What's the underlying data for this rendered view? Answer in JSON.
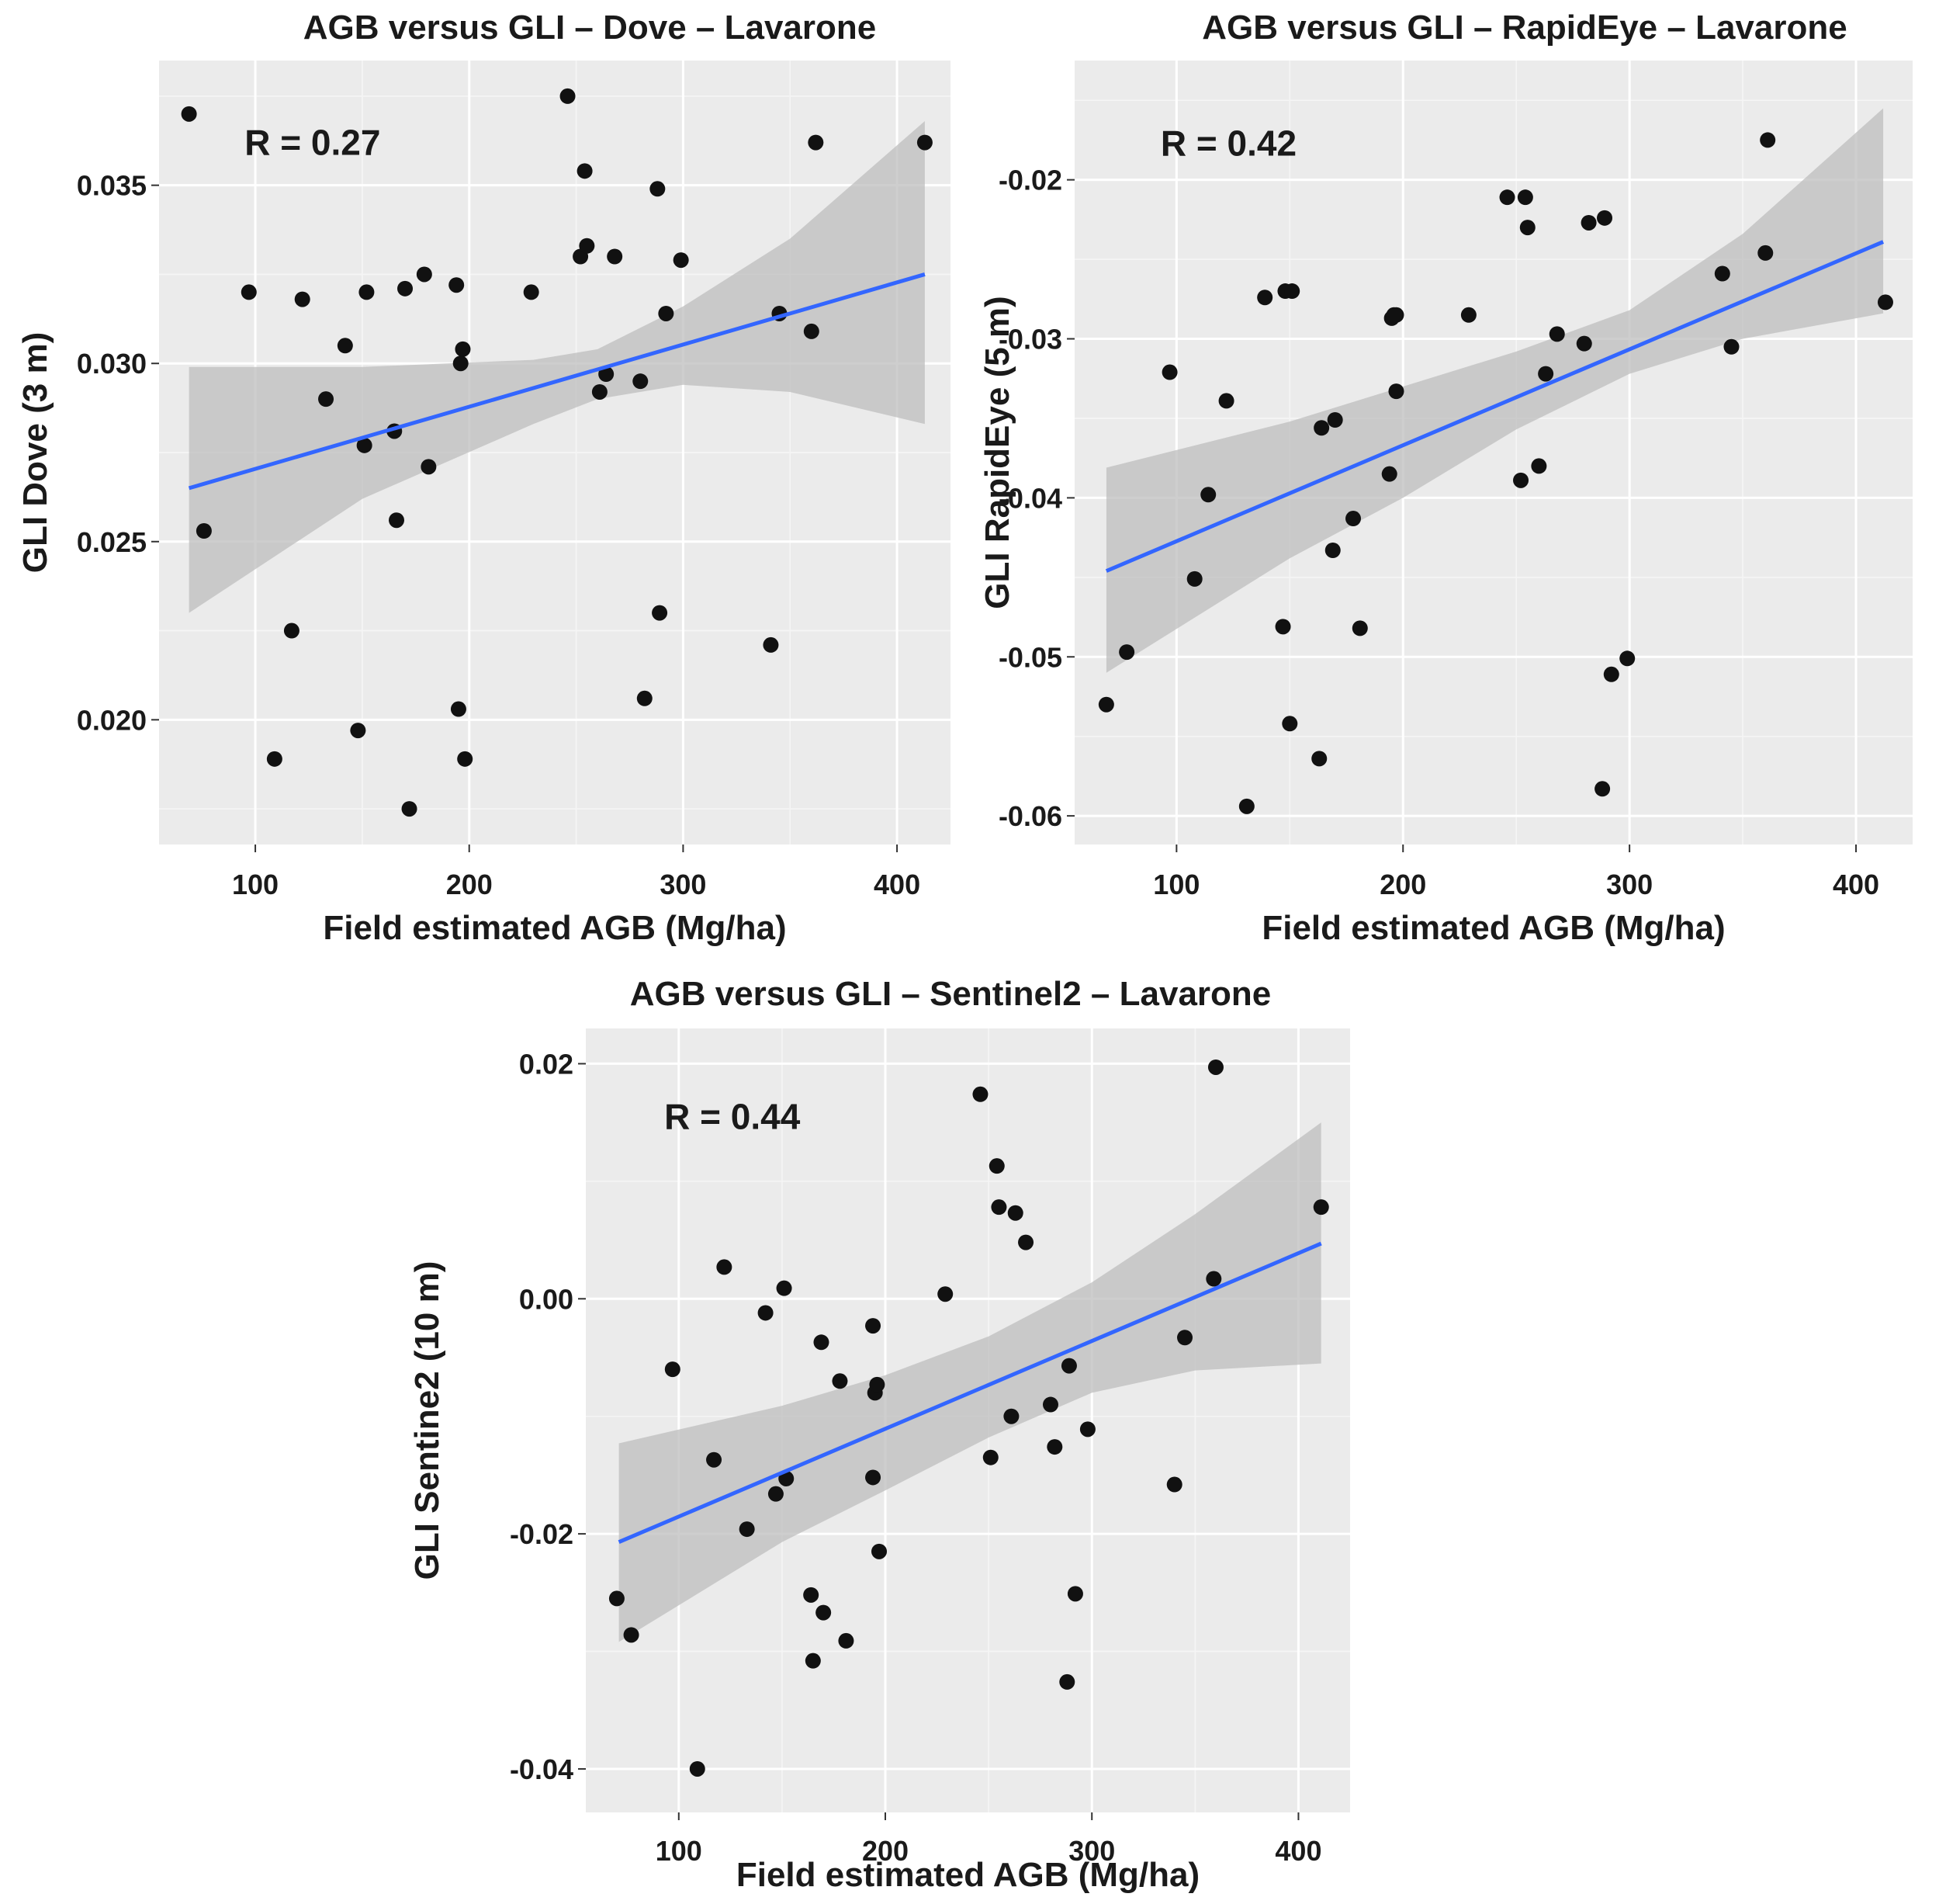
{
  "chart_data": [
    {
      "id": "dove",
      "type": "scatter",
      "title": "AGB versus GLI – Dove – Lavarone",
      "xlabel": "Field estimated AGB (Mg/ha)",
      "ylabel": "GLI Dove (3 m)",
      "annotation": "R = 0.27",
      "xlim": [
        55,
        425
      ],
      "ylim": [
        0.0165,
        0.0385
      ],
      "xticks": [
        100,
        200,
        300,
        400
      ],
      "xtick_labels": [
        "100",
        "200",
        "300",
        "400"
      ],
      "yticks": [
        0.02,
        0.025,
        0.03,
        0.035
      ],
      "ytick_labels": [
        "0.020",
        "0.025",
        "0.030",
        "0.035"
      ],
      "annotation_at": [
        95,
        0.0362
      ],
      "fit": {
        "x": [
          69,
          413
        ],
        "y": [
          0.0265,
          0.0325
        ]
      },
      "ribbon": {
        "x": [
          69,
          150,
          230,
          260,
          300,
          350,
          413
        ],
        "lower": [
          0.023,
          0.0262,
          0.0283,
          0.029,
          0.0294,
          0.0292,
          0.0283
        ],
        "upper": [
          0.0299,
          0.0299,
          0.0301,
          0.0304,
          0.0316,
          0.0335,
          0.0368
        ]
      },
      "points": {
        "x": [
          69,
          76,
          97,
          109,
          117,
          122,
          133,
          142,
          148,
          151,
          152,
          165,
          166,
          170,
          172,
          179,
          181,
          194,
          195,
          196,
          197,
          198,
          229,
          246,
          252,
          254,
          255,
          261,
          264,
          268,
          280,
          282,
          288,
          289,
          292,
          299,
          341,
          345,
          360,
          362,
          413
        ],
        "y": [
          0.037,
          0.0253,
          0.032,
          0.0189,
          0.0225,
          0.0318,
          0.029,
          0.0305,
          0.0197,
          0.0277,
          0.032,
          0.0281,
          0.0256,
          0.0321,
          0.0175,
          0.0325,
          0.0271,
          0.0322,
          0.0203,
          0.03,
          0.0304,
          0.0189,
          0.032,
          0.0375,
          0.033,
          0.0354,
          0.0333,
          0.0292,
          0.0297,
          0.033,
          0.0295,
          0.0206,
          0.0349,
          0.023,
          0.0314,
          0.0329,
          0.0221,
          0.0314,
          0.0309,
          0.0362,
          0.0362
        ]
      }
    },
    {
      "id": "rapideye",
      "type": "scatter",
      "title": "AGB versus GLI – RapidEye – Lavarone",
      "xlabel": "Field estimated AGB (Mg/ha)",
      "ylabel": "GLI RapidEye (5 m)",
      "annotation": "R = 0.42",
      "xlim": [
        55,
        425
      ],
      "ylim": [
        -0.0618,
        -0.0125
      ],
      "xticks": [
        100,
        200,
        300,
        400
      ],
      "xtick_labels": [
        "100",
        "200",
        "300",
        "400"
      ],
      "yticks": [
        -0.06,
        -0.05,
        -0.04,
        -0.03,
        -0.02
      ],
      "ytick_labels": [
        "-0.06",
        "-0.05",
        "-0.04",
        "-0.03",
        "-0.02"
      ],
      "annotation_at": [
        93,
        -0.0177
      ],
      "fit": {
        "x": [
          69,
          412
        ],
        "y": [
          -0.0446,
          -0.0239
        ]
      },
      "ribbon": {
        "x": [
          69,
          150,
          200,
          250,
          300,
          350,
          412
        ],
        "lower": [
          -0.051,
          -0.0438,
          -0.04,
          -0.0357,
          -0.0322,
          -0.03,
          -0.0284
        ],
        "upper": [
          -0.0381,
          -0.0352,
          -0.033,
          -0.0308,
          -0.0282,
          -0.0234,
          -0.0155
        ]
      },
      "points": {
        "x": [
          69,
          78,
          97,
          108,
          114,
          122,
          131,
          139,
          147,
          148,
          150,
          151,
          163,
          164,
          169,
          170,
          178,
          181,
          194,
          195,
          196,
          197,
          197,
          229,
          246,
          252,
          254,
          255,
          260,
          263,
          268,
          280,
          282,
          288,
          289,
          292,
          299,
          341,
          345,
          360,
          361,
          413
        ],
        "y": [
          -0.053,
          -0.0497,
          -0.0321,
          -0.0451,
          -0.0398,
          -0.0339,
          -0.0594,
          -0.0274,
          -0.0481,
          -0.027,
          -0.0542,
          -0.027,
          -0.0564,
          -0.0356,
          -0.0433,
          -0.0351,
          -0.0413,
          -0.0482,
          -0.0385,
          -0.0287,
          -0.0285,
          -0.0333,
          -0.0285,
          -0.0285,
          -0.0211,
          -0.0389,
          -0.0211,
          -0.023,
          -0.038,
          -0.0322,
          -0.0297,
          -0.0303,
          -0.0227,
          -0.0583,
          -0.0224,
          -0.0511,
          -0.0501,
          -0.0259,
          -0.0305,
          -0.0246,
          -0.0175,
          -0.0277
        ]
      }
    },
    {
      "id": "sentinel2",
      "type": "scatter",
      "title": "AGB versus GLI – Sentinel2 – Lavarone",
      "xlabel": "Field estimated AGB (Mg/ha)",
      "ylabel": "GLI Sentine2 (10 m)",
      "annotation": "R = 0.44",
      "xlim": [
        55,
        425
      ],
      "ylim": [
        -0.0437,
        0.023
      ],
      "xticks": [
        100,
        200,
        300,
        400
      ],
      "xtick_labels": [
        "100",
        "200",
        "300",
        "400"
      ],
      "yticks": [
        -0.04,
        -0.02,
        0.0,
        0.02
      ],
      "ytick_labels": [
        "-0.04",
        "-0.02",
        "0.00",
        "0.02"
      ],
      "annotation_at": [
        93,
        0.0155
      ],
      "fit": {
        "x": [
          71,
          411
        ],
        "y": [
          -0.0207,
          0.0047
        ]
      },
      "ribbon": {
        "x": [
          71,
          150,
          200,
          250,
          300,
          350,
          411
        ],
        "lower": [
          -0.0292,
          -0.0207,
          -0.0163,
          -0.0118,
          -0.008,
          -0.0061,
          -0.0055
        ],
        "upper": [
          -0.0123,
          -0.0091,
          -0.0065,
          -0.0032,
          0.0014,
          0.0072,
          0.015
        ]
      },
      "points": {
        "x": [
          70,
          77,
          97,
          109,
          117,
          122,
          133,
          142,
          147,
          151,
          152,
          164,
          165,
          169,
          170,
          178,
          181,
          194,
          194,
          195,
          196,
          197,
          229,
          246,
          251,
          254,
          255,
          261,
          263,
          268,
          280,
          282,
          288,
          289,
          292,
          298,
          340,
          345,
          359,
          360,
          411
        ],
        "y": [
          -0.0255,
          -0.0286,
          -0.006,
          -0.04,
          -0.0137,
          0.0027,
          -0.0196,
          -0.0012,
          -0.0166,
          0.0009,
          -0.0153,
          -0.0252,
          -0.0308,
          -0.0037,
          -0.0267,
          -0.007,
          -0.0291,
          -0.0152,
          -0.0023,
          -0.008,
          -0.0073,
          -0.0215,
          0.0004,
          0.0174,
          -0.0135,
          0.0113,
          0.0078,
          -0.01,
          0.0073,
          0.0048,
          -0.009,
          -0.0126,
          -0.0326,
          -0.0057,
          -0.0251,
          -0.0111,
          -0.0158,
          -0.0033,
          0.0017,
          0.0197,
          0.0078
        ]
      }
    }
  ]
}
